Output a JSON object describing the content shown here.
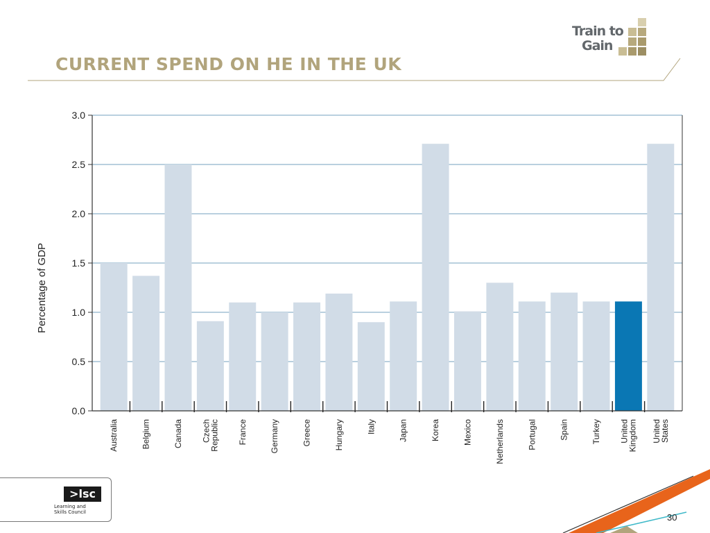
{
  "slide": {
    "title": "CURRENT SPEND ON HE IN THE UK",
    "page_number": "30",
    "logo_top": {
      "line1": "Train to",
      "line2": "Gain"
    },
    "logo_bottom": {
      "mark": ">lsc",
      "subtitle": "Learning and\nSkills Council"
    }
  },
  "colors": {
    "title": "#b1a47c",
    "bar_default": "#d1dce7",
    "bar_highlight": "#0a77b4",
    "gridline": "#8fb3cc",
    "accent_orange": "#e8641b",
    "accent_teal": "#3fb9c9"
  },
  "chart_data": {
    "type": "bar",
    "title": "",
    "xlabel": "",
    "ylabel": "Percentage of GDP",
    "ylim": [
      0,
      3.0
    ],
    "yticks": [
      "0.0",
      "0.5",
      "1.0",
      "1.5",
      "2.0",
      "2.5",
      "3.0"
    ],
    "grid": true,
    "categories": [
      "Australia",
      "Belgium",
      "Canada",
      "Czech\nRepublic",
      "France",
      "Germany",
      "Greece",
      "Hungary",
      "Italy",
      "Japan",
      "Korea",
      "Mexico",
      "Netherlands",
      "Portugal",
      "Spain",
      "Turkey",
      "United\nKingdom",
      "United\nStates"
    ],
    "values": [
      1.5,
      1.37,
      2.5,
      0.91,
      1.1,
      1.0,
      1.1,
      1.19,
      0.9,
      1.11,
      2.71,
      1.01,
      1.3,
      1.11,
      1.2,
      1.11,
      1.11,
      2.71
    ],
    "highlight": "United\nKingdom"
  }
}
